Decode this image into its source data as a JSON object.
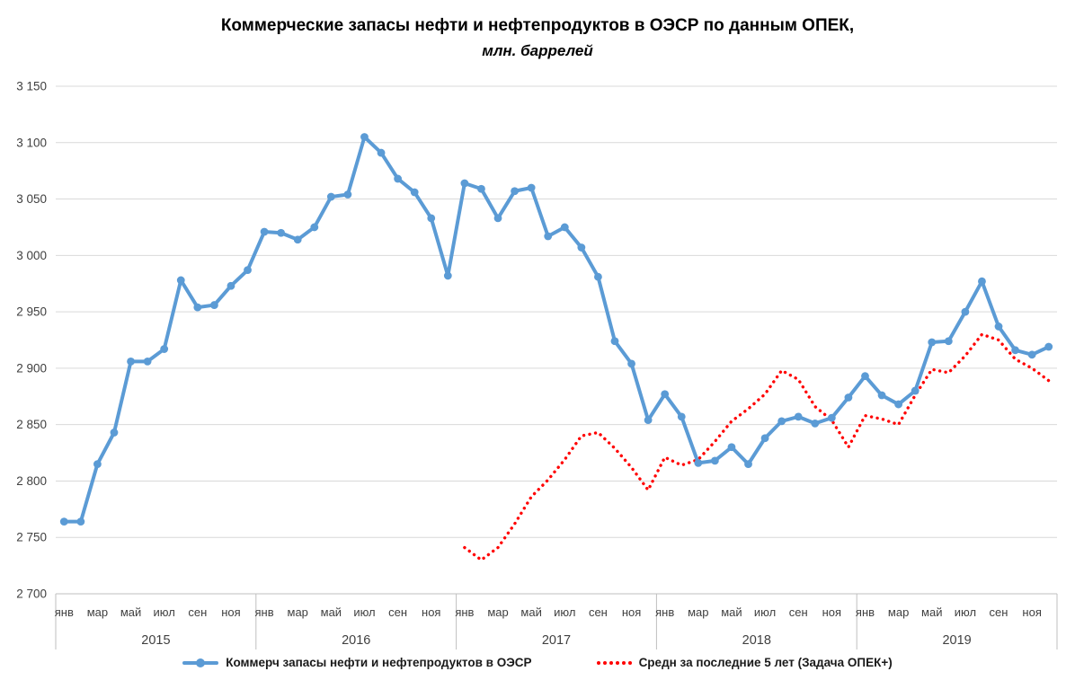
{
  "title": "Коммерческие запасы нефти и нефтепродуктов в ОЭСР по данным ОПЕК,",
  "subtitle": "млн. баррелей",
  "colors": {
    "primary_series": "#5B9BD5",
    "secondary_series": "#FF0000",
    "gridline": "#D9D9D9",
    "axis_line": "#BFBFBF",
    "tick_text": "#404040",
    "legend_text": "#1a1a1a"
  },
  "chart_data": {
    "type": "line",
    "title": "Коммерческие запасы нефти и нефтепродуктов в ОЭСР по данным ОПЕК,",
    "subtitle": "млн. баррелей",
    "ylabel": "",
    "xlabel": "",
    "ylim": [
      2700,
      3150
    ],
    "y_tick_step": 50,
    "y_tick_labels": [
      "2 700",
      "2 750",
      "2 800",
      "2 850",
      "2 900",
      "2 950",
      "3 000",
      "3 050",
      "3 100",
      "3 150"
    ],
    "grid": "horizontal",
    "legend_position": "bottom",
    "years": [
      "2015",
      "2016",
      "2017",
      "2018",
      "2019"
    ],
    "month_tick_labels": [
      "янв",
      "мар",
      "май",
      "июл",
      "сен",
      "ноя"
    ],
    "months_total": 60,
    "series": [
      {
        "name": "Коммерч запасы нефти и нефтепродуктов в ОЭСР",
        "color": "#5B9BD5",
        "style": "solid-with-markers",
        "start_month_index": 0,
        "values": [
          2764,
          2764,
          2815,
          2843,
          2906,
          2906,
          2917,
          2978,
          2954,
          2956,
          2973,
          2987,
          3021,
          3020,
          3014,
          3025,
          3052,
          3054,
          3105,
          3091,
          3068,
          3056,
          3033,
          2982,
          3064,
          3059,
          3033,
          3057,
          3060,
          3017,
          3025,
          3007,
          2981,
          2924,
          2904,
          2854,
          2877,
          2857,
          2816,
          2818,
          2830,
          2815,
          2838,
          2853,
          2857,
          2851,
          2856,
          2874,
          2893,
          2876,
          2868,
          2880,
          2923,
          2924,
          2950,
          2977,
          2937,
          2916,
          2912,
          2919
        ]
      },
      {
        "name": "Средн за последние 5 лет (Задача ОПЕК+)",
        "color": "#FF0000",
        "style": "dotted",
        "start_month_index": 24,
        "values": [
          2741,
          2730,
          2741,
          2762,
          2786,
          2801,
          2819,
          2840,
          2843,
          2829,
          2812,
          2792,
          2821,
          2814,
          2819,
          2835,
          2853,
          2864,
          2877,
          2898,
          2890,
          2866,
          2854,
          2830,
          2858,
          2855,
          2850,
          2876,
          2899,
          2896,
          2911,
          2930,
          2925,
          2908,
          2900,
          2889
        ]
      }
    ]
  }
}
